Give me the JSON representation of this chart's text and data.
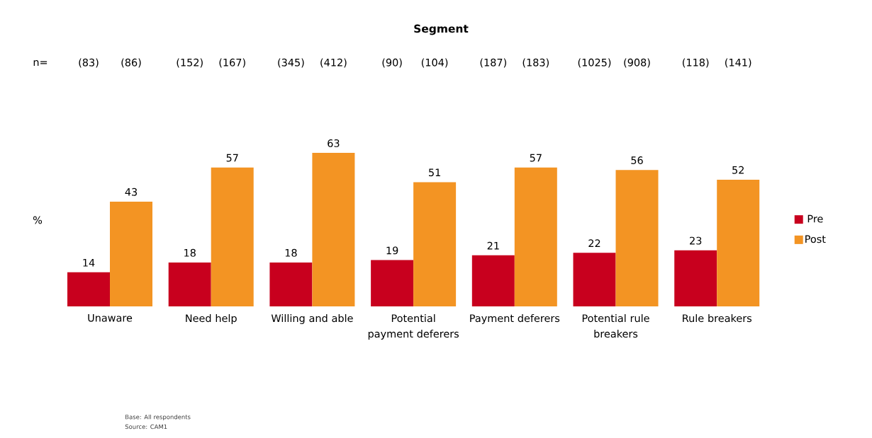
{
  "chart_data": {
    "type": "bar",
    "title": "Segment",
    "ylabel": "%",
    "categories": [
      "Unaware",
      "Need help",
      "Willing and able",
      "Potential payment deferers",
      "Payment deferers",
      "Potential rule breakers",
      "Rule breakers"
    ],
    "series": [
      {
        "name": "Pre",
        "color": "#c8001e",
        "values": [
          14,
          18,
          18,
          19,
          21,
          22,
          23
        ]
      },
      {
        "name": "Post",
        "color": "#f39423",
        "values": [
          43,
          57,
          63,
          51,
          57,
          56,
          52
        ]
      }
    ],
    "data_labels": true,
    "legend": "right",
    "tick_labels": "x",
    "annotations": [
      "n=",
      "(83)",
      "(86)",
      "(152)",
      "(167)",
      "(345)",
      "(412)",
      "(90)",
      "(104)",
      "(187)",
      "(183)",
      "(1025)",
      "(908)",
      "(118)",
      "(141)",
      "Base: All respondents",
      "Source: CAM1"
    ]
  }
}
